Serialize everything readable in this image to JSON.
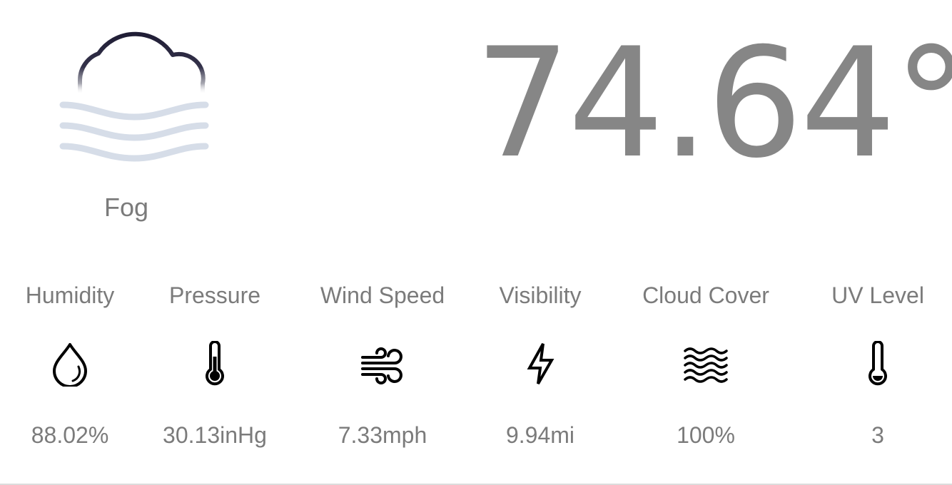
{
  "current": {
    "condition": "Fog",
    "condition_icon": "fog-icon",
    "temperature": "74.64°"
  },
  "metrics": [
    {
      "label": "Humidity",
      "icon": "droplet-icon",
      "value": "88.02%"
    },
    {
      "label": "Pressure",
      "icon": "thermometer-icon",
      "value": "30.13inHg"
    },
    {
      "label": "Wind Speed",
      "icon": "wind-icon",
      "value": "7.33mph"
    },
    {
      "label": "Visibility",
      "icon": "lightning-icon",
      "value": "9.94mi"
    },
    {
      "label": "Cloud Cover",
      "icon": "waves-icon",
      "value": "100%"
    },
    {
      "label": "UV Level",
      "icon": "thermometer-icon",
      "value": "3"
    }
  ],
  "colors": {
    "text": "#7b7b7b",
    "temperature": "#868686",
    "cloud_outline": "#1f1d35",
    "fog_lines": "#d6dde8",
    "icon": "#000000"
  }
}
